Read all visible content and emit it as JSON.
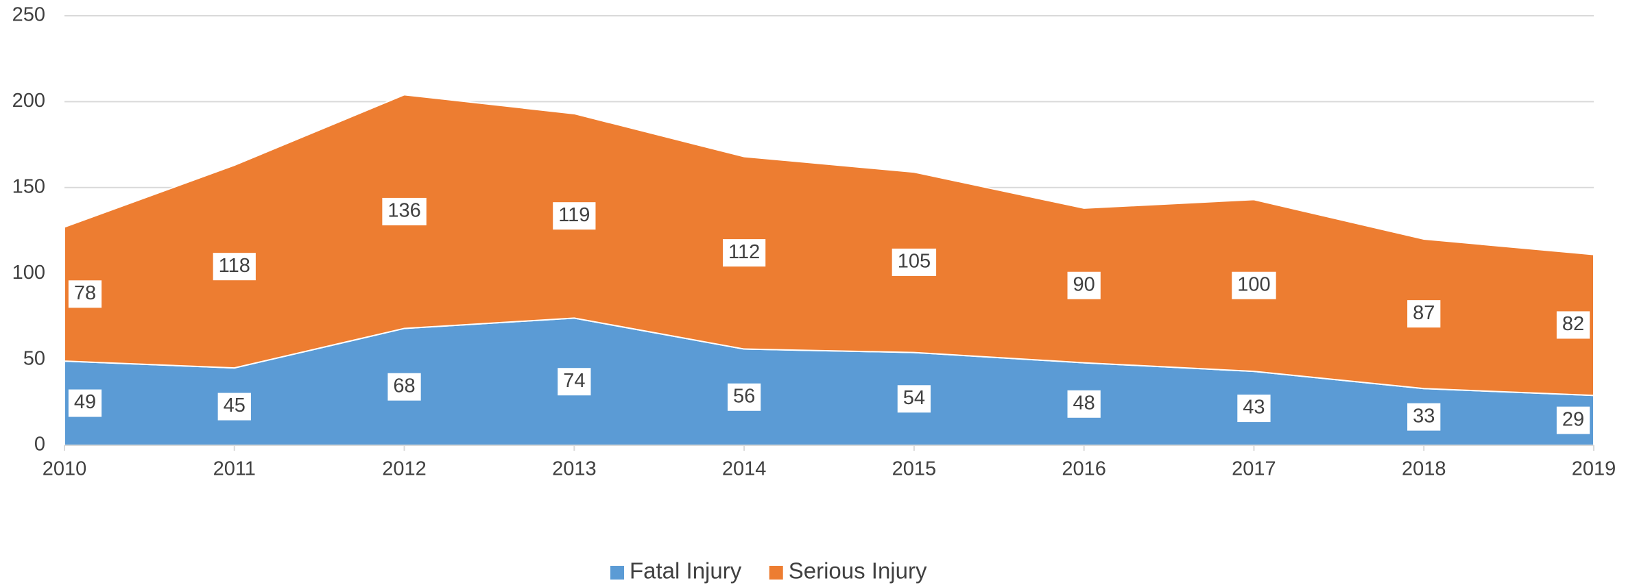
{
  "chart_data": {
    "type": "stacked_area",
    "categories": [
      "2010",
      "2011",
      "2012",
      "2013",
      "2014",
      "2015",
      "2016",
      "2017",
      "2018",
      "2019"
    ],
    "series": [
      {
        "name": "Fatal Injury",
        "color": "#5b9bd5",
        "values": [
          49,
          45,
          68,
          74,
          56,
          54,
          48,
          43,
          33,
          29
        ]
      },
      {
        "name": "Serious Injury",
        "color": "#ed7d31",
        "values": [
          78,
          118,
          136,
          119,
          112,
          105,
          90,
          100,
          87,
          82
        ]
      }
    ],
    "ylim": [
      0,
      250
    ],
    "yticks": [
      0,
      50,
      100,
      150,
      200,
      250
    ],
    "grid": true,
    "legend": "bottom"
  }
}
